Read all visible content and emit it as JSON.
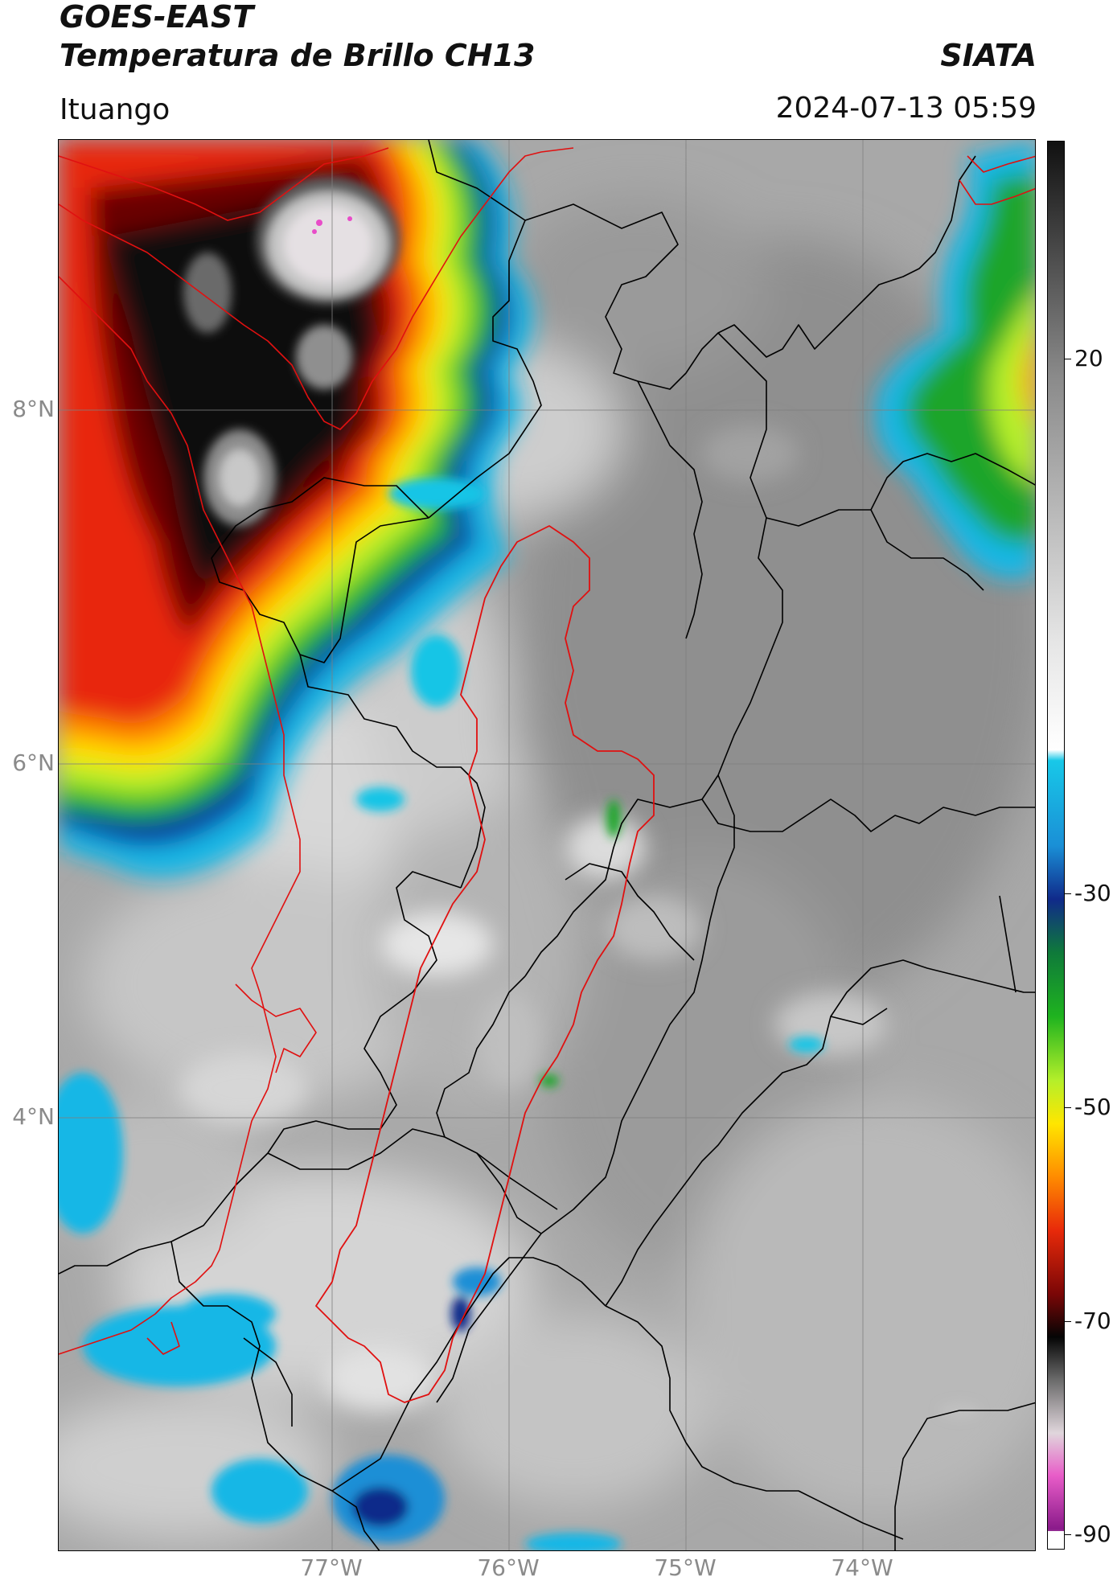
{
  "header": {
    "satellite": "GOES-EAST",
    "product": "Temperatura de Brillo CH13",
    "organization": "SIATA",
    "location": "Ituango",
    "datetime": "2024-07-13 05:59"
  },
  "map": {
    "lat_labels": [
      "8°N",
      "6°N",
      "4°N"
    ],
    "lon_labels": [
      "77°W",
      "76°W",
      "75°W",
      "74°W"
    ],
    "colors": {
      "background_gray": "#a9a9a9",
      "country_borders": "#000000",
      "region_outline": "#e01010",
      "gridlines": "#7f7f7f"
    }
  },
  "colorbar": {
    "unit_hint": "brightness temperature",
    "tick_labels": [
      "20",
      "-30",
      "-50",
      "-70",
      "-90"
    ],
    "range": [
      -90,
      42
    ],
    "stops": [
      {
        "value": 42,
        "color": "#111111"
      },
      {
        "value": 20,
        "color": "#8a8a8a"
      },
      {
        "value": -5,
        "color": "#e6e6e6"
      },
      {
        "value": -15,
        "color": "#ffffff"
      },
      {
        "value": -16,
        "color": "#18c8e8"
      },
      {
        "value": -24,
        "color": "#1a8fd6"
      },
      {
        "value": -29,
        "color": "#102a8a"
      },
      {
        "value": -34,
        "color": "#0f7a3a"
      },
      {
        "value": -40,
        "color": "#1fb31f"
      },
      {
        "value": -46,
        "color": "#b5ef2a"
      },
      {
        "value": -50,
        "color": "#ffe600"
      },
      {
        "value": -55,
        "color": "#ff8c00"
      },
      {
        "value": -60,
        "color": "#e82a0a"
      },
      {
        "value": -66,
        "color": "#7a0606"
      },
      {
        "value": -70,
        "color": "#050505"
      },
      {
        "value": -74,
        "color": "#6a6a6a"
      },
      {
        "value": -79,
        "color": "#e0d6dc"
      },
      {
        "value": -83,
        "color": "#e85cc8"
      },
      {
        "value": -88,
        "color": "#8a1a8a"
      },
      {
        "value": -90,
        "color": "#ffffff"
      }
    ]
  }
}
